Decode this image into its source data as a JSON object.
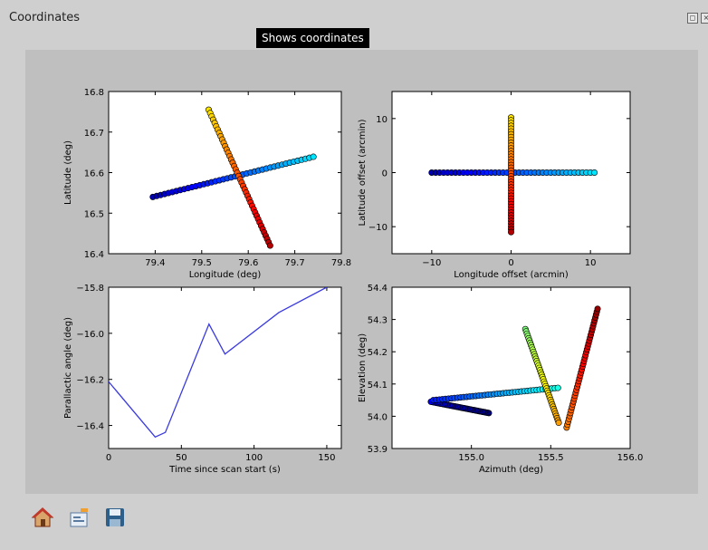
{
  "window": {
    "title": "Coordinates"
  },
  "tooltip": "Shows coordinates",
  "toolbar": {
    "home_icon": "home-icon",
    "configure_icon": "configure-subplots-icon",
    "save_icon": "save-icon"
  },
  "chart_data": [
    {
      "type": "scatter",
      "xlabel": "Longitude (deg)",
      "ylabel": "Latitude (deg)",
      "xlim": [
        79.3,
        79.8
      ],
      "ylim": [
        16.4,
        16.8
      ],
      "xticks": [
        "79.4",
        "79.5",
        "79.6",
        "79.7",
        "79.8"
      ],
      "yticks": [
        "16.4",
        "16.5",
        "16.6",
        "16.7",
        "16.8"
      ],
      "colormap": "jet",
      "series": [
        {
          "from": [
            79.395,
            16.54
          ],
          "to": [
            79.74,
            16.639
          ],
          "n": 42,
          "c0": 0.05,
          "c1": 0.35
        },
        {
          "from": [
            79.515,
            16.755
          ],
          "to": [
            79.647,
            16.42
          ],
          "n": 42,
          "c0": 0.65,
          "c1": 0.95
        }
      ]
    },
    {
      "type": "scatter",
      "xlabel": "Longitude offset (arcmin)",
      "ylabel": "Latitude offset (arcmin)",
      "xlim": [
        -15,
        15
      ],
      "ylim": [
        -15,
        15
      ],
      "xticks": [
        "−10",
        "0",
        "10"
      ],
      "yticks": [
        "−10",
        "0",
        "10"
      ],
      "colormap": "jet",
      "series": [
        {
          "from": [
            -10,
            0
          ],
          "to": [
            10.5,
            0
          ],
          "n": 42,
          "c0": 0.05,
          "c1": 0.35
        },
        {
          "from": [
            0,
            10.2
          ],
          "to": [
            0,
            -11
          ],
          "n": 42,
          "c0": 0.65,
          "c1": 0.95
        }
      ]
    },
    {
      "type": "line",
      "xlabel": "Time since scan start (s)",
      "ylabel": "Parallactic angle (deg)",
      "xlim": [
        0,
        160
      ],
      "ylim": [
        -16.5,
        -15.8
      ],
      "xticks": [
        "0",
        "50",
        "100",
        "150"
      ],
      "yticks": [
        "−16.4",
        "−16.2",
        "−16.0",
        "−15.8"
      ],
      "color": "#3a3ae0",
      "x": [
        0,
        32,
        39,
        69,
        80,
        117,
        150
      ],
      "y": [
        -16.21,
        -16.45,
        -16.43,
        -15.96,
        -16.09,
        -15.91,
        -15.8
      ]
    },
    {
      "type": "scatter",
      "xlabel": "Azimuth (deg)",
      "ylabel": "Elevation (deg)",
      "xlim": [
        154.5,
        156.0
      ],
      "ylim": [
        53.9,
        54.4
      ],
      "xticks": [
        "155.0",
        "155.5",
        "156.0"
      ],
      "yticks": [
        "53.9",
        "54.0",
        "54.1",
        "54.2",
        "54.3",
        "54.4"
      ],
      "colormap": "jet",
      "series": [
        {
          "from": [
            155.11,
            54.01
          ],
          "to": [
            154.745,
            54.045
          ],
          "n": 42,
          "c0": 0.02,
          "c1": 0.12
        },
        {
          "from": [
            154.76,
            54.05
          ],
          "to": [
            155.545,
            54.088
          ],
          "n": 42,
          "c0": 0.15,
          "c1": 0.4
        },
        {
          "from": [
            155.34,
            54.27
          ],
          "to": [
            155.55,
            53.98
          ],
          "n": 42,
          "c0": 0.5,
          "c1": 0.72
        },
        {
          "from": [
            155.6,
            53.965
          ],
          "to": [
            155.795,
            54.333
          ],
          "n": 42,
          "c0": 0.75,
          "c1": 0.98
        }
      ]
    }
  ]
}
